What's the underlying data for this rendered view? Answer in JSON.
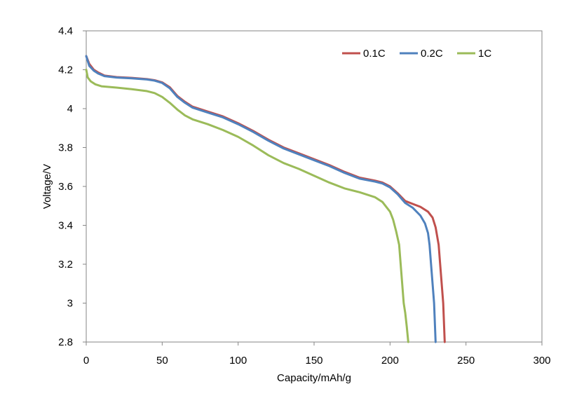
{
  "chart_data": {
    "type": "line",
    "title": "",
    "xlabel": "Capacity/mAh/g",
    "ylabel": "Voltage/V",
    "xlim": [
      0,
      300
    ],
    "ylim": [
      2.8,
      4.4
    ],
    "xticks": [
      "0",
      "50",
      "100",
      "150",
      "200",
      "250",
      "300"
    ],
    "yticks": [
      "2.8",
      "3",
      "3.2",
      "3.4",
      "3.6",
      "3.8",
      "4",
      "4.2",
      "4.4"
    ],
    "xtick_values": [
      0,
      50,
      100,
      150,
      200,
      250,
      300
    ],
    "ytick_values": [
      2.8,
      3.0,
      3.2,
      3.4,
      3.6,
      3.8,
      4.0,
      4.2,
      4.4
    ],
    "grid": false,
    "legend_position": "top-right",
    "series": [
      {
        "name": "0.1C",
        "color": "#C0504D",
        "x": [
          0,
          2,
          5,
          8,
          12,
          20,
          30,
          40,
          45,
          50,
          55,
          60,
          65,
          70,
          80,
          90,
          100,
          110,
          120,
          130,
          140,
          150,
          160,
          170,
          180,
          190,
          195,
          200,
          205,
          210,
          215,
          220,
          225,
          228,
          230,
          232,
          233,
          234,
          235,
          235.5,
          236
        ],
        "y": [
          4.27,
          4.23,
          4.2,
          4.185,
          4.17,
          4.162,
          4.158,
          4.152,
          4.146,
          4.135,
          4.11,
          4.065,
          4.035,
          4.01,
          3.985,
          3.96,
          3.925,
          3.885,
          3.84,
          3.8,
          3.77,
          3.74,
          3.71,
          3.675,
          3.645,
          3.63,
          3.62,
          3.6,
          3.565,
          3.525,
          3.51,
          3.495,
          3.47,
          3.44,
          3.39,
          3.3,
          3.2,
          3.1,
          3.0,
          2.9,
          2.8
        ]
      },
      {
        "name": "0.2C",
        "color": "#4F81BD",
        "x": [
          0,
          2,
          5,
          8,
          12,
          20,
          30,
          40,
          45,
          50,
          55,
          60,
          65,
          70,
          80,
          90,
          100,
          110,
          120,
          130,
          140,
          150,
          160,
          170,
          180,
          190,
          195,
          200,
          205,
          210,
          215,
          220,
          223,
          225,
          226,
          227,
          228,
          229,
          229.5,
          230
        ],
        "y": [
          4.27,
          4.22,
          4.195,
          4.18,
          4.167,
          4.16,
          4.156,
          4.15,
          4.144,
          4.132,
          4.105,
          4.06,
          4.03,
          4.005,
          3.98,
          3.955,
          3.92,
          3.88,
          3.835,
          3.795,
          3.765,
          3.735,
          3.705,
          3.67,
          3.64,
          3.625,
          3.615,
          3.595,
          3.56,
          3.515,
          3.49,
          3.45,
          3.41,
          3.36,
          3.3,
          3.2,
          3.1,
          3.0,
          2.9,
          2.8
        ]
      },
      {
        "name": "1C",
        "color": "#9BBB59",
        "x": [
          0,
          1,
          3,
          6,
          10,
          20,
          30,
          40,
          45,
          50,
          55,
          60,
          65,
          70,
          80,
          90,
          100,
          110,
          120,
          130,
          140,
          150,
          160,
          170,
          180,
          190,
          195,
          200,
          202,
          204,
          206,
          207,
          208,
          209,
          210,
          211,
          211.5,
          212
        ],
        "y": [
          4.2,
          4.16,
          4.14,
          4.125,
          4.115,
          4.108,
          4.1,
          4.09,
          4.08,
          4.06,
          4.03,
          3.995,
          3.965,
          3.945,
          3.92,
          3.89,
          3.855,
          3.81,
          3.76,
          3.72,
          3.69,
          3.655,
          3.62,
          3.59,
          3.57,
          3.545,
          3.52,
          3.47,
          3.43,
          3.37,
          3.3,
          3.2,
          3.1,
          3.0,
          2.95,
          2.88,
          2.84,
          2.8
        ]
      }
    ]
  }
}
